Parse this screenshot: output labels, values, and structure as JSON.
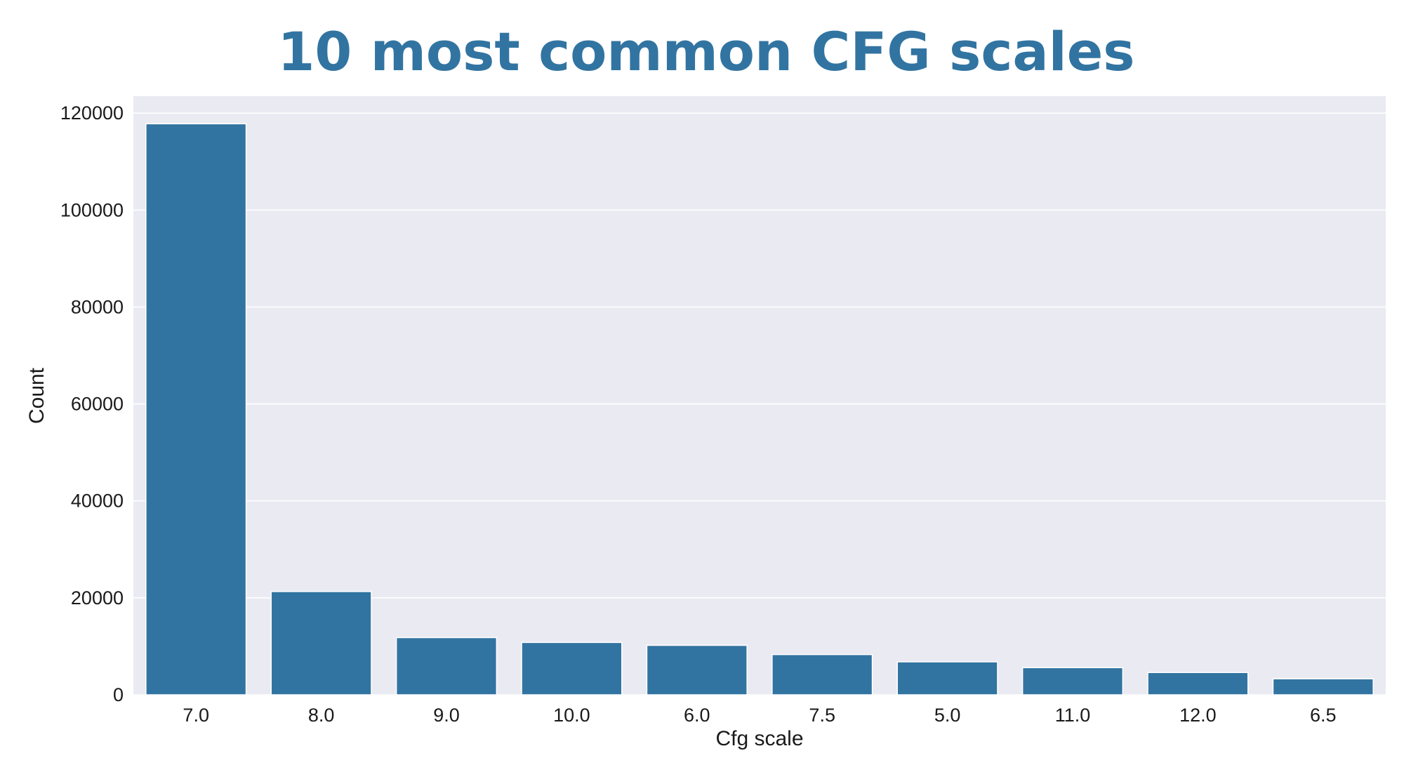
{
  "chart_data": {
    "type": "bar",
    "title": "10 most common CFG scales",
    "xlabel": "Cfg scale",
    "ylabel": "Count",
    "categories": [
      "7.0",
      "8.0",
      "9.0",
      "10.0",
      "6.0",
      "7.5",
      "5.0",
      "11.0",
      "12.0",
      "6.5"
    ],
    "values": [
      117800,
      21300,
      11800,
      10800,
      10200,
      8300,
      6800,
      5600,
      4600,
      3300
    ],
    "ylim": [
      0,
      123500
    ],
    "yticks": [
      0,
      20000,
      40000,
      60000,
      80000,
      100000,
      120000
    ],
    "grid": true,
    "colors": {
      "bar": "#3274a1",
      "title": "#3274a1",
      "plot_background": "#eaeaf2",
      "grid": "#ffffff"
    }
  }
}
